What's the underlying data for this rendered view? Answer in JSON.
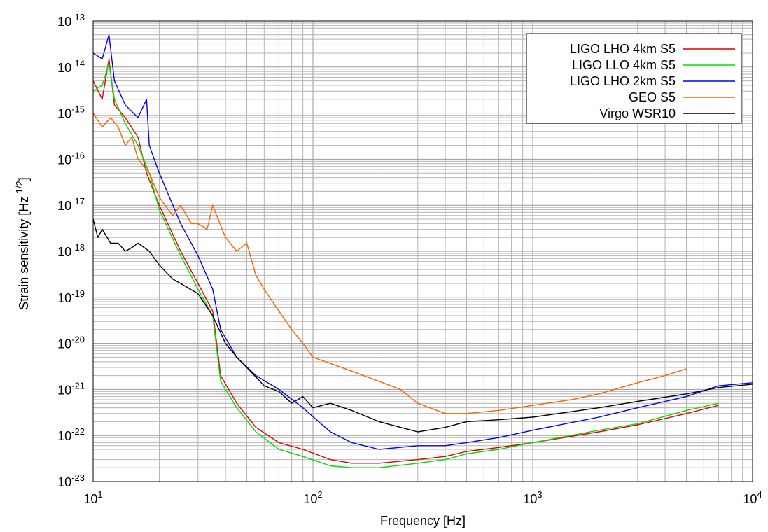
{
  "chart_data": {
    "type": "line",
    "xlabel": "Frequency [Hz]",
    "ylabel_main": "Strain sensitivity [Hz",
    "ylabel_exp": "-1/2",
    "ylabel_close": "]",
    "xscale": "log",
    "yscale": "log",
    "xlim": [
      10,
      10000
    ],
    "ylim": [
      1e-23,
      1e-13
    ],
    "grid": true,
    "legend_position": "top-right",
    "x_ticks": [
      {
        "base": "10",
        "exp": "1",
        "value": 10
      },
      {
        "base": "10",
        "exp": "2",
        "value": 100
      },
      {
        "base": "10",
        "exp": "3",
        "value": 1000
      },
      {
        "base": "10",
        "exp": "4",
        "value": 10000
      }
    ],
    "y_ticks": [
      {
        "base": "10",
        "exp": "-13",
        "value": 1e-13
      },
      {
        "base": "10",
        "exp": "-14",
        "value": 1e-14
      },
      {
        "base": "10",
        "exp": "-15",
        "value": 1e-15
      },
      {
        "base": "10",
        "exp": "-16",
        "value": 1e-16
      },
      {
        "base": "10",
        "exp": "-17",
        "value": 1e-17
      },
      {
        "base": "10",
        "exp": "-18",
        "value": 1e-18
      },
      {
        "base": "10",
        "exp": "-19",
        "value": 1e-19
      },
      {
        "base": "10",
        "exp": "-20",
        "value": 1e-20
      },
      {
        "base": "10",
        "exp": "-21",
        "value": 1e-21
      },
      {
        "base": "10",
        "exp": "-22",
        "value": 1e-22
      },
      {
        "base": "10",
        "exp": "-23",
        "value": 1e-23
      }
    ],
    "series": [
      {
        "name": "LIGO LHO 4km S5",
        "color": "#e00000",
        "points": [
          [
            10,
            5e-15
          ],
          [
            11,
            2e-15
          ],
          [
            11.8,
            1.5e-14
          ],
          [
            12.5,
            1.5e-15
          ],
          [
            14,
            8e-16
          ],
          [
            16,
            3e-16
          ],
          [
            17.5,
            5e-17
          ],
          [
            20,
            1e-17
          ],
          [
            25,
            1e-18
          ],
          [
            30,
            2e-19
          ],
          [
            35,
            5e-20
          ],
          [
            38,
            2e-21
          ],
          [
            45,
            5e-22
          ],
          [
            55,
            1.5e-22
          ],
          [
            70,
            7e-23
          ],
          [
            90,
            5e-23
          ],
          [
            120,
            3e-23
          ],
          [
            150,
            2.5e-23
          ],
          [
            200,
            2.5e-23
          ],
          [
            300,
            3e-23
          ],
          [
            400,
            3.5e-23
          ],
          [
            500,
            4.5e-23
          ],
          [
            700,
            5.5e-23
          ],
          [
            1000,
            7e-23
          ],
          [
            2000,
            1.2e-22
          ],
          [
            3000,
            1.7e-22
          ],
          [
            5000,
            3e-22
          ],
          [
            7000,
            4.5e-22
          ]
        ]
      },
      {
        "name": "LIGO LLO 4km S5",
        "color": "#00dd00",
        "points": [
          [
            10,
            3e-15
          ],
          [
            11,
            4e-15
          ],
          [
            11.8,
            1.2e-14
          ],
          [
            12.5,
            2e-15
          ],
          [
            14,
            6e-16
          ],
          [
            16,
            2e-16
          ],
          [
            18,
            5e-17
          ],
          [
            20,
            8e-18
          ],
          [
            25,
            8e-19
          ],
          [
            30,
            1.5e-19
          ],
          [
            35,
            4e-20
          ],
          [
            38,
            1.5e-21
          ],
          [
            45,
            4e-22
          ],
          [
            55,
            1.2e-22
          ],
          [
            70,
            5e-23
          ],
          [
            90,
            3.5e-23
          ],
          [
            120,
            2.2e-23
          ],
          [
            150,
            2e-23
          ],
          [
            200,
            2e-23
          ],
          [
            300,
            2.5e-23
          ],
          [
            400,
            3e-23
          ],
          [
            500,
            4e-23
          ],
          [
            700,
            5e-23
          ],
          [
            1000,
            7e-23
          ],
          [
            2000,
            1.3e-22
          ],
          [
            3000,
            1.8e-22
          ],
          [
            5000,
            3.5e-22
          ],
          [
            7000,
            5e-22
          ]
        ]
      },
      {
        "name": "LIGO LHO 2km S5",
        "color": "#0000ee",
        "points": [
          [
            10,
            2e-14
          ],
          [
            11,
            1.5e-14
          ],
          [
            11.8,
            5e-14
          ],
          [
            12.5,
            5e-15
          ],
          [
            14,
            1.5e-15
          ],
          [
            16,
            8e-16
          ],
          [
            17.5,
            2e-15
          ],
          [
            18,
            2e-16
          ],
          [
            20,
            5e-17
          ],
          [
            25,
            4e-18
          ],
          [
            30,
            8e-19
          ],
          [
            35,
            1.5e-19
          ],
          [
            38,
            2e-20
          ],
          [
            45,
            5e-21
          ],
          [
            55,
            2e-21
          ],
          [
            70,
            1e-21
          ],
          [
            90,
            4e-22
          ],
          [
            120,
            1.2e-22
          ],
          [
            150,
            7e-23
          ],
          [
            200,
            5e-23
          ],
          [
            300,
            6e-23
          ],
          [
            400,
            6e-23
          ],
          [
            500,
            7e-23
          ],
          [
            700,
            9e-23
          ],
          [
            1000,
            1.3e-22
          ],
          [
            2000,
            2.5e-22
          ],
          [
            3000,
            4e-22
          ],
          [
            5000,
            7e-22
          ],
          [
            7000,
            1.2e-21
          ],
          [
            10000,
            1.4e-21
          ]
        ]
      },
      {
        "name": "GEO S5",
        "color": "#ff6000",
        "points": [
          [
            10,
            1e-15
          ],
          [
            11,
            5e-16
          ],
          [
            12,
            8e-16
          ],
          [
            13,
            5e-16
          ],
          [
            14,
            2e-16
          ],
          [
            15,
            3e-16
          ],
          [
            16,
            1e-16
          ],
          [
            18,
            5e-17
          ],
          [
            20,
            1.5e-17
          ],
          [
            23,
            6e-18
          ],
          [
            25,
            1e-17
          ],
          [
            28,
            4e-18
          ],
          [
            30,
            4e-18
          ],
          [
            33,
            3e-18
          ],
          [
            35,
            1e-17
          ],
          [
            40,
            2e-18
          ],
          [
            45,
            1e-18
          ],
          [
            50,
            1.5e-18
          ],
          [
            55,
            3e-19
          ],
          [
            60,
            1.5e-19
          ],
          [
            70,
            5e-20
          ],
          [
            80,
            2e-20
          ],
          [
            90,
            1e-20
          ],
          [
            100,
            5e-21
          ],
          [
            150,
            2.5e-21
          ],
          [
            200,
            1.5e-21
          ],
          [
            250,
            1e-21
          ],
          [
            300,
            5e-22
          ],
          [
            400,
            3e-22
          ],
          [
            500,
            3e-22
          ],
          [
            700,
            3.5e-22
          ],
          [
            1000,
            4.5e-22
          ],
          [
            1500,
            6e-22
          ],
          [
            2000,
            8e-22
          ],
          [
            3000,
            1.4e-21
          ],
          [
            4000,
            2e-21
          ],
          [
            5000,
            2.8e-21
          ]
        ]
      },
      {
        "name": "Virgo WSR10",
        "color": "#000000",
        "points": [
          [
            10,
            5e-18
          ],
          [
            10.5,
            2e-18
          ],
          [
            11,
            3e-18
          ],
          [
            12,
            1.5e-18
          ],
          [
            13,
            1.5e-18
          ],
          [
            14,
            1e-18
          ],
          [
            15,
            1.2e-18
          ],
          [
            16,
            1.5e-18
          ],
          [
            18,
            1e-18
          ],
          [
            20,
            5e-19
          ],
          [
            23,
            2.5e-19
          ],
          [
            25,
            2e-19
          ],
          [
            30,
            1.2e-19
          ],
          [
            35,
            4e-20
          ],
          [
            40,
            1e-20
          ],
          [
            45,
            5e-21
          ],
          [
            50,
            3e-21
          ],
          [
            60,
            1.2e-21
          ],
          [
            70,
            9e-22
          ],
          [
            80,
            5e-22
          ],
          [
            90,
            7e-22
          ],
          [
            100,
            4e-22
          ],
          [
            120,
            5e-22
          ],
          [
            150,
            3.5e-22
          ],
          [
            200,
            2e-22
          ],
          [
            250,
            1.5e-22
          ],
          [
            300,
            1.2e-22
          ],
          [
            400,
            1.5e-22
          ],
          [
            500,
            2e-22
          ],
          [
            700,
            2.2e-22
          ],
          [
            1000,
            2.5e-22
          ],
          [
            2000,
            4e-22
          ],
          [
            3000,
            5.5e-22
          ],
          [
            5000,
            8e-22
          ],
          [
            7000,
            1.1e-21
          ],
          [
            10000,
            1.3e-21
          ]
        ]
      }
    ]
  }
}
